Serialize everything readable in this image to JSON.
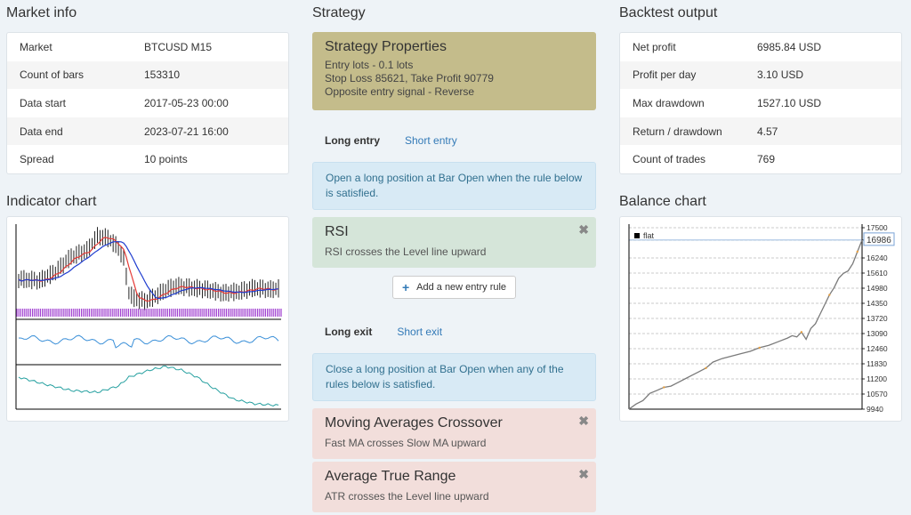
{
  "market_info": {
    "title": "Market info",
    "rows": [
      {
        "label": "Market",
        "value": "BTCUSD M15"
      },
      {
        "label": "Count of bars",
        "value": "153310"
      },
      {
        "label": "Data start",
        "value": "2017-05-23 00:00"
      },
      {
        "label": "Data end",
        "value": "2023-07-21 16:00"
      },
      {
        "label": "Spread",
        "value": "10 points"
      }
    ]
  },
  "indicator_chart": {
    "title": "Indicator chart"
  },
  "strategy": {
    "title": "Strategy",
    "properties_title": "Strategy Properties",
    "properties_lines": [
      "Entry lots - 0.1 lots",
      "Stop Loss 85621, Take Profit 90779",
      "Opposite entry signal - Reverse"
    ],
    "entry_tabs": {
      "active": "Long entry",
      "other": "Short entry"
    },
    "entry_info": "Open a long position at Bar Open when the rule below is satisfied.",
    "entry_rules": [
      {
        "title": "RSI",
        "desc": "RSI crosses the Level line upward"
      }
    ],
    "add_entry_label": "Add a new entry rule",
    "exit_tabs": {
      "active": "Long exit",
      "other": "Short exit"
    },
    "exit_info": "Close a long position at Bar Open when any of the rules below is satisfied.",
    "exit_rules": [
      {
        "title": "Moving Averages Crossover",
        "desc": "Fast MA crosses Slow MA upward"
      },
      {
        "title": "Average True Range",
        "desc": "ATR crosses the Level line upward"
      }
    ],
    "close_glyph": "✖"
  },
  "backtest_output": {
    "title": "Backtest output",
    "rows": [
      {
        "label": "Net profit",
        "value": "6985.84 USD"
      },
      {
        "label": "Profit per day",
        "value": "3.10 USD"
      },
      {
        "label": "Max drawdown",
        "value": "1527.10 USD"
      },
      {
        "label": "Return / drawdown",
        "value": "4.57"
      },
      {
        "label": "Count of trades",
        "value": "769"
      }
    ]
  },
  "balance_chart_panel": {
    "title": "Balance chart"
  },
  "chart_data": {
    "type": "line",
    "legend": "flat",
    "legend_placement": "top-left",
    "current_value_label": "16986",
    "y_ticks": [
      17500,
      16986,
      16240,
      15610,
      14980,
      14350,
      13720,
      13090,
      12460,
      11830,
      11200,
      10570,
      9940
    ],
    "ylim": [
      9940,
      17500
    ],
    "grid": true,
    "series": [
      {
        "color": "#7a7a7a",
        "x": [
          0,
          3,
          6,
          9,
          12,
          15,
          18,
          21,
          24,
          27,
          30,
          33,
          36,
          40,
          44,
          48,
          52,
          56,
          60,
          64,
          68,
          70,
          72,
          74,
          76,
          78,
          80,
          82,
          84,
          86,
          88,
          90,
          92,
          94,
          96,
          98,
          100
        ],
        "values": [
          9940,
          10150,
          10300,
          10600,
          10720,
          10850,
          10900,
          11050,
          11200,
          11350,
          11500,
          11650,
          11900,
          12050,
          12150,
          12250,
          12350,
          12500,
          12600,
          12750,
          12900,
          13000,
          12950,
          13150,
          12850,
          13300,
          13500,
          13900,
          14300,
          14700,
          15000,
          15400,
          15600,
          15700,
          16000,
          16500,
          16986
        ]
      }
    ]
  },
  "colors": {
    "price_bars": "#222222",
    "ma_fast": "#e53935",
    "ma_slow": "#1e3ccf",
    "signal_strip": "#a040d0",
    "rsi_line": "#3a8fd8",
    "atr_line": "#26a0a0",
    "strategy_properties_bg": "#c4bc8b",
    "entry_rule_bg": "#d5e5d9",
    "exit_rule_bg": "#f2dedb",
    "info_bg": "#d8eaf5",
    "balance_accent": "#e8a040"
  },
  "icons": {
    "plus": "plus-icon",
    "close": "close-icon"
  }
}
